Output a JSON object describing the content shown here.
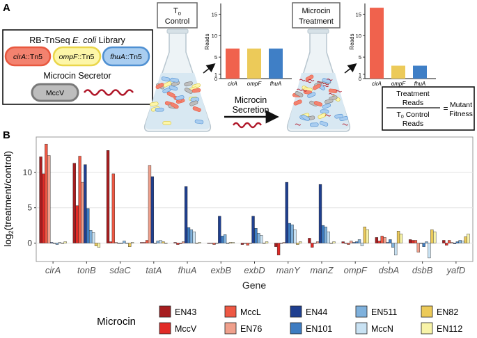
{
  "panel_a": {
    "label": "A",
    "library_box": {
      "title_pre": "RB-TnSeq ",
      "title_species": "E. coli",
      "title_post": " Library",
      "mutants": [
        {
          "gene": "cirA",
          "suffix": "::Tn5",
          "fill": "#f3826f",
          "stroke": "#e8583f"
        },
        {
          "gene": "ompF",
          "suffix": "::Tn5",
          "fill": "#fdf6a8",
          "stroke": "#ead64a"
        },
        {
          "gene": "fhuA",
          "suffix": "::Tn5",
          "fill": "#a9cdf0",
          "stroke": "#4f90d2"
        }
      ],
      "secretor_title": "Microcin Secretor",
      "secretor_label": "MccV"
    },
    "control": {
      "title_line1": "T",
      "title_sub": "0",
      "title_line2": "Control"
    },
    "treatment": {
      "title_line1": "Microcin",
      "title_line2": "Treatment"
    },
    "secretion_label_line1": "Microcin",
    "secretion_label_line2": "Secretion",
    "mini_bar_ylabel": "Reads",
    "mini_bar_yticks": [
      "0",
      "1",
      "5",
      "10",
      "15"
    ],
    "mini_bar_genes": [
      "cirA",
      "ompF",
      "fhuA"
    ],
    "mini_bar_colors": [
      "#f0624d",
      "#ecca59",
      "#3f7fc6"
    ],
    "formula": {
      "numerator_line1": "Treatment",
      "numerator_line2": "Reads",
      "denominator_pre": "T",
      "denominator_sub": "0",
      "denominator_post": " Control",
      "denominator_line2": "Reads",
      "equals": "=",
      "result_line1": "Mutant",
      "result_line2": "Fitness"
    }
  },
  "panel_b": {
    "label": "B",
    "legend_title": "Microcin",
    "legend": [
      {
        "name": "EN43",
        "color": "#a61d1f"
      },
      {
        "name": "MccV",
        "color": "#e12a26"
      },
      {
        "name": "MccL",
        "color": "#ee5844"
      },
      {
        "name": "EN76",
        "color": "#f0a08c"
      },
      {
        "name": "EN44",
        "color": "#1f3f8f"
      },
      {
        "name": "EN101",
        "color": "#3e7cc1"
      },
      {
        "name": "EN511",
        "color": "#7fb1dc"
      },
      {
        "name": "MccN",
        "color": "#c9e2f3"
      },
      {
        "name": "EN82",
        "color": "#ecca59"
      },
      {
        "name": "EN112",
        "color": "#f8f3a8"
      }
    ]
  },
  "chart_data": [
    {
      "type": "bar",
      "title": "",
      "xlabel": "",
      "ylabel": "Reads",
      "categories": [
        "cirA",
        "ompF",
        "fhuA"
      ],
      "values": [
        7,
        7,
        7
      ],
      "ylim": [
        0,
        17
      ],
      "yticks": [
        0,
        1,
        5,
        10,
        15
      ]
    },
    {
      "type": "bar",
      "title": "",
      "xlabel": "",
      "ylabel": "Reads",
      "categories": [
        "cirA",
        "ompF",
        "fhuA"
      ],
      "values": [
        16.5,
        3,
        3
      ],
      "ylim": [
        0,
        17
      ],
      "yticks": [
        0,
        1,
        5,
        10,
        15
      ]
    },
    {
      "type": "bar",
      "title": "",
      "xlabel": "Gene",
      "ylabel": "log2(treatment/control)",
      "ylim": [
        -2.6,
        15
      ],
      "yticks": [
        0,
        5,
        10
      ],
      "grid": true,
      "legend_position": "bottom",
      "categories": [
        "cirA",
        "tonB",
        "sdaC",
        "tatA",
        "fhuA",
        "exbB",
        "exbD",
        "manY",
        "manZ",
        "ompF",
        "dsbA",
        "dsbB",
        "yafD"
      ],
      "series": [
        {
          "name": "EN43",
          "values": [
            12.2,
            11.3,
            13.1,
            0.1,
            0.1,
            0.0,
            -0.2,
            -0.5,
            0.7,
            0.2,
            0.8,
            0.5,
            0.4
          ]
        },
        {
          "name": "MccV",
          "values": [
            9.8,
            5.3,
            0.2,
            0.1,
            -0.2,
            0.0,
            0.0,
            -1.7,
            -0.6,
            0.0,
            0.3,
            0.4,
            -0.3
          ]
        },
        {
          "name": "MccL",
          "values": [
            14.0,
            12.3,
            9.8,
            0.4,
            -0.1,
            -0.2,
            -0.3,
            0.0,
            0.0,
            -0.2,
            1.0,
            0.4,
            0.4
          ]
        },
        {
          "name": "EN76",
          "values": [
            12.4,
            8.6,
            0.1,
            11.0,
            0.2,
            0.0,
            0.0,
            0.1,
            0.2,
            0.3,
            0.8,
            -1.3,
            0.1
          ]
        },
        {
          "name": "EN44",
          "values": [
            0.1,
            11.1,
            0.0,
            9.4,
            8.0,
            3.8,
            3.8,
            8.6,
            8.3,
            0.1,
            0.1,
            0.0,
            -0.1
          ]
        },
        {
          "name": "EN101",
          "values": [
            0.0,
            4.9,
            0.0,
            0.0,
            2.2,
            1.0,
            2.1,
            2.8,
            2.5,
            0.2,
            0.5,
            -0.5,
            0.2
          ]
        },
        {
          "name": "EN511",
          "values": [
            -0.2,
            1.8,
            0.3,
            0.3,
            1.9,
            1.2,
            1.4,
            2.6,
            2.3,
            0.5,
            -0.6,
            0.2,
            0.4
          ]
        },
        {
          "name": "MccN",
          "values": [
            0.1,
            1.5,
            0.0,
            0.4,
            1.6,
            -0.1,
            1.1,
            1.9,
            1.6,
            -0.4,
            -1.7,
            -2.1,
            0.3
          ]
        },
        {
          "name": "EN82",
          "values": [
            0.0,
            -0.4,
            -0.5,
            0.2,
            0.0,
            0.1,
            0.0,
            -0.2,
            0.0,
            2.3,
            1.7,
            1.9,
            0.9
          ]
        },
        {
          "name": "EN112",
          "values": [
            0.2,
            -0.6,
            0.1,
            0.0,
            0.1,
            0.1,
            0.2,
            0.2,
            0.2,
            1.9,
            1.3,
            1.6,
            1.3
          ]
        }
      ]
    }
  ]
}
